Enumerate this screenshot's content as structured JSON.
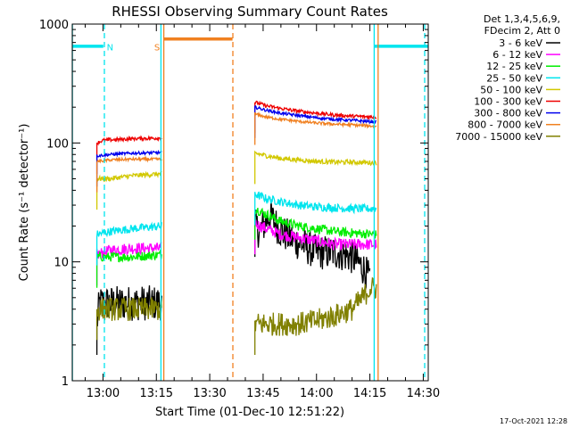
{
  "chart_data": {
    "type": "line",
    "title": "RHESSI Observing Summary Count Rates",
    "xlabel": "Start Time (01-Dec-10 12:51:22)",
    "ylabel": "Count Rate (s⁻¹ detector⁻¹)",
    "yscale": "log",
    "ylim": [
      1,
      1000
    ],
    "xlim_minutes": [
      51.37,
      151.4
    ],
    "x_ticks": [
      {
        "t": 60,
        "label": "13:00"
      },
      {
        "t": 75,
        "label": "13:15"
      },
      {
        "t": 90,
        "label": "13:30"
      },
      {
        "t": 105,
        "label": "13:45"
      },
      {
        "t": 120,
        "label": "14:00"
      },
      {
        "t": 135,
        "label": "14:15"
      },
      {
        "t": 150,
        "label": "14:30"
      }
    ],
    "y_ticks": [
      {
        "v": 1,
        "label": "1"
      },
      {
        "v": 10,
        "label": "10"
      },
      {
        "v": 100,
        "label": "100"
      },
      {
        "v": 1000,
        "label": "1000"
      }
    ],
    "legend": {
      "position": "right",
      "header": [
        "Det 1,3,4,5,6,9,",
        "FDecim 2, Att 0"
      ],
      "entries": [
        {
          "label": "3 - 6 keV",
          "color": "#000000"
        },
        {
          "label": "6 - 12 keV",
          "color": "#ff00ff"
        },
        {
          "label": "12 - 25 keV",
          "color": "#00ee00"
        },
        {
          "label": "25 - 50 keV",
          "color": "#00e5ee"
        },
        {
          "label": "50 - 100 keV",
          "color": "#d2c800"
        },
        {
          "label": "100 - 300 keV",
          "color": "#ee0000"
        },
        {
          "label": "300 - 800 keV",
          "color": "#0000ee"
        },
        {
          "label": "800 - 7000 keV",
          "color": "#f08020"
        },
        {
          "label": "7000 - 15000 keV",
          "color": "#808000"
        }
      ]
    },
    "intervals": [
      {
        "start": 58.2,
        "end": 76.8
      },
      {
        "start": 102.6,
        "end": 137.1
      }
    ],
    "series": [
      {
        "name": "3 - 6 keV",
        "color": "#000000",
        "noise": 0.15,
        "segments": [
          [
            [
              58.3,
              3
            ],
            [
              59,
              4.5
            ],
            [
              62,
              4.5
            ],
            [
              70,
              4.5
            ],
            [
              76.5,
              4.5
            ]
          ],
          [
            [
              102.7,
              20
            ],
            [
              104,
              18
            ],
            [
              107,
              25
            ],
            [
              108,
              22
            ],
            [
              110,
              18
            ],
            [
              114,
              15
            ],
            [
              120,
              12
            ],
            [
              126,
              12
            ],
            [
              130,
              11
            ],
            [
              133,
              9
            ],
            [
              135,
              7
            ]
          ]
        ]
      },
      {
        "name": "6 - 12 keV",
        "color": "#ff00ff",
        "noise": 0.05,
        "segments": [
          [
            [
              58.3,
              11.5
            ],
            [
              62,
              12.5
            ],
            [
              68,
              13
            ],
            [
              76.5,
              13
            ]
          ],
          [
            [
              102.7,
              21
            ],
            [
              106,
              19
            ],
            [
              110,
              17
            ],
            [
              115,
              16
            ],
            [
              120,
              15
            ],
            [
              125,
              14
            ],
            [
              130,
              14
            ],
            [
              135,
              14
            ],
            [
              136.8,
              14
            ]
          ]
        ]
      },
      {
        "name": "12 - 25 keV",
        "color": "#00ee00",
        "noise": 0.04,
        "segments": [
          [
            [
              58.3,
              11
            ],
            [
              62,
              11
            ],
            [
              68,
              11
            ],
            [
              76.5,
              11.5
            ]
          ],
          [
            [
              102.7,
              28
            ],
            [
              106,
              25
            ],
            [
              110,
              22
            ],
            [
              115,
              20
            ],
            [
              120,
              19
            ],
            [
              125,
              18
            ],
            [
              130,
              17.5
            ],
            [
              136.8,
              17
            ]
          ]
        ]
      },
      {
        "name": "25 - 50 keV",
        "color": "#00e5ee",
        "noise": 0.035,
        "segments": [
          [
            [
              58.3,
              17
            ],
            [
              62,
              18
            ],
            [
              68,
              19
            ],
            [
              76.5,
              20
            ]
          ],
          [
            [
              102.7,
              37
            ],
            [
              106,
              34
            ],
            [
              110,
              32
            ],
            [
              115,
              30
            ],
            [
              120,
              29
            ],
            [
              125,
              28.5
            ],
            [
              130,
              28
            ],
            [
              136.8,
              28
            ]
          ]
        ]
      },
      {
        "name": "50 - 100 keV",
        "color": "#d2c800",
        "noise": 0.02,
        "segments": [
          [
            [
              58.3,
              50
            ],
            [
              62,
              50
            ],
            [
              68,
              53
            ],
            [
              76.5,
              55
            ]
          ],
          [
            [
              102.7,
              82
            ],
            [
              106,
              78
            ],
            [
              110,
              74
            ],
            [
              115,
              72
            ],
            [
              120,
              70
            ],
            [
              125,
              69
            ],
            [
              130,
              69
            ],
            [
              136.8,
              68
            ]
          ]
        ]
      },
      {
        "name": "100 - 300 keV",
        "color": "#ee0000",
        "noise": 0.015,
        "segments": [
          [
            [
              58.3,
              100
            ],
            [
              60,
              105
            ],
            [
              64,
              107
            ],
            [
              70,
              109
            ],
            [
              76.5,
              110
            ]
          ],
          [
            [
              102.7,
              220
            ],
            [
              106,
              205
            ],
            [
              110,
              195
            ],
            [
              115,
              185
            ],
            [
              120,
              178
            ],
            [
              125,
              172
            ],
            [
              130,
              168
            ],
            [
              136.8,
              165
            ]
          ]
        ]
      },
      {
        "name": "300 - 800 keV",
        "color": "#0000ee",
        "noise": 0.012,
        "segments": [
          [
            [
              58.3,
              78
            ],
            [
              62,
              80
            ],
            [
              68,
              82
            ],
            [
              76.5,
              83
            ]
          ],
          [
            [
              102.7,
              200
            ],
            [
              106,
              188
            ],
            [
              110,
              178
            ],
            [
              115,
              170
            ],
            [
              120,
              163
            ],
            [
              125,
              158
            ],
            [
              130,
              155
            ],
            [
              136.8,
              150
            ]
          ]
        ]
      },
      {
        "name": "800 - 7000 keV",
        "color": "#f08020",
        "noise": 0.012,
        "segments": [
          [
            [
              58.3,
              70
            ],
            [
              62,
              72
            ],
            [
              68,
              73
            ],
            [
              76.5,
              73
            ]
          ],
          [
            [
              102.7,
              175
            ],
            [
              106,
              165
            ],
            [
              110,
              158
            ],
            [
              115,
              152
            ],
            [
              120,
              147
            ],
            [
              125,
              144
            ],
            [
              130,
              142
            ],
            [
              136.8,
              138
            ]
          ]
        ]
      },
      {
        "name": "7000 - 15000 keV",
        "color": "#808000",
        "noise": 0.1,
        "segments": [
          [
            [
              58.3,
              4
            ],
            [
              62,
              4
            ],
            [
              70,
              4
            ],
            [
              76.5,
              4
            ]
          ],
          [
            [
              102.7,
              3
            ],
            [
              106,
              3
            ],
            [
              110,
              3
            ],
            [
              115,
              3
            ],
            [
              120,
              3.2
            ],
            [
              125,
              3.5
            ],
            [
              130,
              4
            ],
            [
              133,
              5
            ],
            [
              135,
              6
            ],
            [
              136.8,
              6
            ]
          ]
        ]
      }
    ],
    "flags": [
      {
        "name": "N",
        "color": "#00e5ee",
        "label": "N",
        "bars": [
          {
            "start": 51.37,
            "end": 60.1,
            "v": 650
          },
          {
            "start": 136.3,
            "end": 151.4,
            "v": 650
          }
        ],
        "verticals": [
          {
            "t": 51.4,
            "style": "solid"
          },
          {
            "t": 60.4,
            "style": "dashed"
          },
          {
            "t": 136.2,
            "style": "solid"
          },
          {
            "t": 150.4,
            "style": "dashed"
          }
        ],
        "label_t": 62.0
      },
      {
        "name": "S",
        "color": "#f08020",
        "label": "S",
        "bars": [
          {
            "start": 77.2,
            "end": 96.4,
            "v": 750
          }
        ],
        "verticals": [
          {
            "t": 77.1,
            "style": "solid"
          },
          {
            "t": 96.5,
            "style": "dashed"
          },
          {
            "t": 137.3,
            "style": "solid"
          }
        ],
        "label_t": 75.2
      },
      {
        "name": "dropout",
        "color": "#00e5ee",
        "label": "",
        "bars": [],
        "verticals": [
          {
            "t": 76.3,
            "style": "solid"
          }
        ],
        "label_t": null
      }
    ]
  },
  "footer": {
    "timestamp": "17-Oct-2021 12:28"
  }
}
